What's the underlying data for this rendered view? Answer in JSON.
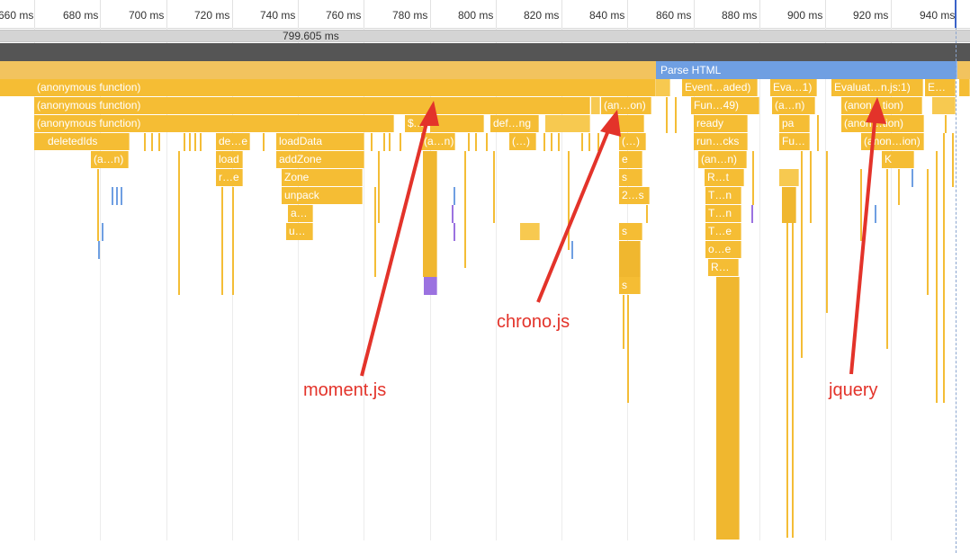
{
  "ruler": {
    "ticks": [
      "660 ms",
      "680 ms",
      "700 ms",
      "720 ms",
      "740 ms",
      "760 ms",
      "780 ms",
      "800 ms",
      "820 ms",
      "840 ms",
      "860 ms",
      "880 ms",
      "900 ms",
      "920 ms",
      "940 ms"
    ]
  },
  "selection": {
    "duration": "799.605 ms"
  },
  "main": {
    "parse_html": "Parse HTML",
    "rows": {
      "r1": {
        "anon": "(anonymous function)",
        "event_loaded": "Event…aded)",
        "eva1": "Eva…1)",
        "evaluat": "Evaluat…n.js:1)",
        "e": "E…"
      },
      "r2": {
        "anon": "(anonymous function)",
        "an_on": "(an…on)",
        "fun49": "Fun…49)",
        "an_n": "(a…n)",
        "anon_tion": "(anon…tion)"
      },
      "r3": {
        "anon": "(anonymous function)",
        "dollar": "$.…",
        "def_ng": "def…ng",
        "ready": "ready",
        "pa": "pa",
        "anon_tion": "(anon…tion)"
      },
      "r4": {
        "deletedids": "deletedIds",
        "de_e": "de…e",
        "loaddata": "loadData",
        "a_n": "(a…n)",
        "dots": "(…)",
        "dots2": "(…)",
        "run_cks": "run…cks",
        "fu": "Fu…",
        "anon_ion": "(anon…ion)"
      },
      "r5": {
        "a_n": "(a…n)",
        "load": "load",
        "addzone": "addZone",
        "e": "e",
        "an_n": "(an…n)",
        "k": "K"
      },
      "r6": {
        "r_e": "r…e",
        "zone": "Zone",
        "s": "s",
        "r_t": "R…t"
      },
      "r7": {
        "unpack": "unpack",
        "two_s": "2…s",
        "t_n": "T…n"
      },
      "r8": {
        "a": "a…",
        "t_n": "T…n"
      },
      "r9": {
        "u": "u…",
        "s": "s",
        "t_e": "T…e"
      },
      "r10": {
        "o_e": "o…e"
      },
      "r11": {
        "r": "R…"
      },
      "r12": {
        "s": "s"
      }
    }
  },
  "annotations": {
    "moment": "moment.js",
    "chrono": "chrono.js",
    "jquery": "jquery",
    "arrow_color": "#e3332a"
  },
  "colors": {
    "flame_yellow": "#f5bd34",
    "parse_blue": "#6f9fe2",
    "script_purple": "#9b72e0"
  }
}
